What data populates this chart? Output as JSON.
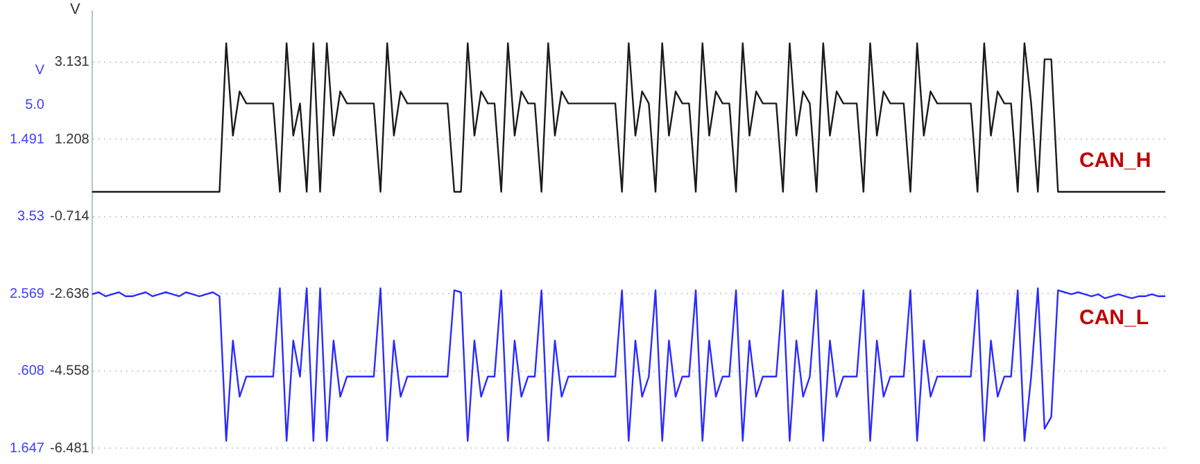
{
  "chart_data": {
    "type": "line",
    "ylabel": "V",
    "annotations": [
      "V",
      "5.0",
      "1.491",
      "3.53",
      "2.569",
      ".608",
      "1.647"
    ],
    "categories": [
      null,
      null,
      null,
      null,
      null,
      null,
      null,
      null,
      null,
      null,
      null,
      null,
      null,
      null,
      null,
      null,
      null,
      null,
      null,
      null,
      null,
      null,
      null,
      null,
      null,
      null,
      null,
      null,
      null,
      null,
      null,
      null,
      null,
      null,
      null,
      null,
      null,
      null,
      null,
      null,
      null,
      null,
      null,
      null,
      null,
      null,
      null,
      null,
      null,
      null,
      null,
      null,
      null,
      null,
      null,
      null,
      null,
      null,
      null,
      null,
      null,
      null,
      null,
      null,
      null,
      null,
      null,
      null,
      null,
      null,
      null,
      null,
      null,
      null,
      null,
      null,
      null,
      null,
      null,
      null,
      null,
      null,
      null,
      null,
      null,
      null,
      null,
      null,
      null,
      null,
      null,
      null,
      null,
      null,
      null,
      null,
      null,
      null,
      null,
      null,
      null,
      null,
      null,
      null,
      null,
      null,
      null,
      null,
      null,
      null,
      null,
      null,
      null,
      null,
      null,
      null,
      null,
      null,
      null,
      null,
      null,
      null,
      null,
      null,
      null,
      null,
      null,
      null,
      null,
      null,
      null,
      null,
      null,
      null,
      null,
      null,
      null,
      null,
      null,
      null,
      null,
      null,
      null,
      null,
      null,
      null,
      null,
      null,
      null,
      null,
      null,
      null,
      null,
      null,
      null,
      null,
      null,
      null,
      null,
      null,
      null
    ],
    "series": [
      {
        "name": "CAN_H",
        "color": "#1a1a1a",
        "values": [
          -0.1,
          -0.1,
          -0.1,
          -0.1,
          -0.1,
          -0.1,
          -0.1,
          -0.1,
          -0.1,
          -0.1,
          -0.1,
          -0.1,
          -0.1,
          -0.1,
          -0.1,
          -0.1,
          -0.1,
          -0.1,
          -0.1,
          -0.1,
          3.6,
          1.3,
          2.4,
          2.1,
          2.1,
          2.1,
          2.1,
          2.1,
          -0.1,
          3.6,
          1.3,
          2.1,
          -0.1,
          3.6,
          -0.1,
          3.6,
          1.3,
          2.4,
          2.1,
          2.1,
          2.1,
          2.1,
          2.1,
          -0.1,
          3.6,
          1.3,
          2.4,
          2.1,
          2.1,
          2.1,
          2.1,
          2.1,
          2.1,
          2.1,
          -0.1,
          -0.1,
          3.6,
          1.3,
          2.4,
          2.1,
          2.1,
          -0.1,
          3.6,
          1.3,
          2.4,
          2.1,
          2.1,
          -0.1,
          3.6,
          1.3,
          2.4,
          2.1,
          2.1,
          2.1,
          2.1,
          2.1,
          2.1,
          2.1,
          2.1,
          -0.1,
          3.6,
          1.3,
          2.4,
          2.1,
          -0.1,
          3.6,
          1.3,
          2.4,
          2.1,
          2.1,
          -0.1,
          3.6,
          1.3,
          2.4,
          2.1,
          2.1,
          -0.1,
          3.6,
          1.3,
          2.4,
          2.1,
          2.1,
          2.1,
          -0.1,
          3.6,
          1.3,
          2.4,
          2.1,
          -0.1,
          3.6,
          1.3,
          2.4,
          2.1,
          2.1,
          2.1,
          -0.1,
          3.6,
          1.3,
          2.4,
          2.1,
          2.1,
          2.1,
          -0.1,
          3.6,
          1.3,
          2.4,
          2.1,
          2.1,
          2.1,
          2.1,
          2.1,
          2.1,
          -0.1,
          3.6,
          1.3,
          2.4,
          2.1,
          2.1,
          -0.1,
          3.6,
          2.1,
          -0.1,
          3.2,
          3.2,
          -0.1,
          -0.1,
          -0.1,
          -0.1,
          -0.1,
          -0.1,
          -0.1,
          -0.1,
          -0.1,
          -0.1,
          -0.1,
          -0.1,
          -0.1,
          -0.1,
          -0.1,
          -0.1,
          -0.1
        ]
      },
      {
        "name": "CAN_L",
        "color": "#2b2bff",
        "values": [
          -2.65,
          -2.6,
          -2.7,
          -2.65,
          -2.6,
          -2.7,
          -2.7,
          -2.65,
          -2.6,
          -2.7,
          -2.65,
          -2.6,
          -2.65,
          -2.7,
          -2.6,
          -2.65,
          -2.7,
          -2.65,
          -2.6,
          -2.7,
          -6.3,
          -3.8,
          -5.2,
          -4.7,
          -4.7,
          -4.7,
          -4.7,
          -4.7,
          -2.5,
          -6.3,
          -3.8,
          -4.7,
          -2.5,
          -6.3,
          -2.5,
          -6.3,
          -3.8,
          -5.2,
          -4.7,
          -4.7,
          -4.7,
          -4.7,
          -4.7,
          -2.5,
          -6.3,
          -3.8,
          -5.2,
          -4.7,
          -4.7,
          -4.7,
          -4.7,
          -4.7,
          -4.7,
          -4.7,
          -2.55,
          -2.6,
          -6.3,
          -3.8,
          -5.2,
          -4.7,
          -4.7,
          -2.55,
          -6.3,
          -3.8,
          -5.2,
          -4.7,
          -4.7,
          -2.55,
          -6.3,
          -3.8,
          -5.2,
          -4.7,
          -4.7,
          -4.7,
          -4.7,
          -4.7,
          -4.7,
          -4.7,
          -4.7,
          -2.55,
          -6.3,
          -3.8,
          -5.2,
          -4.7,
          -2.55,
          -6.3,
          -3.8,
          -5.2,
          -4.7,
          -4.7,
          -2.55,
          -6.3,
          -3.8,
          -5.2,
          -4.7,
          -4.7,
          -2.55,
          -6.3,
          -3.8,
          -5.2,
          -4.7,
          -4.7,
          -4.7,
          -2.55,
          -6.3,
          -3.8,
          -5.2,
          -4.7,
          -2.55,
          -6.3,
          -3.8,
          -5.2,
          -4.7,
          -4.7,
          -4.7,
          -2.55,
          -6.3,
          -3.8,
          -5.2,
          -4.7,
          -4.7,
          -4.7,
          -2.55,
          -6.3,
          -3.8,
          -5.2,
          -4.7,
          -4.7,
          -4.7,
          -4.7,
          -4.7,
          -4.7,
          -2.55,
          -6.3,
          -3.8,
          -5.2,
          -4.7,
          -4.7,
          -2.55,
          -6.3,
          -4.7,
          -2.5,
          -6.0,
          -5.7,
          -2.55,
          -2.6,
          -2.65,
          -2.6,
          -2.65,
          -2.7,
          -2.65,
          -2.75,
          -2.7,
          -2.65,
          -2.7,
          -2.75,
          -2.7,
          -2.7,
          -2.65,
          -2.7,
          -2.7
        ]
      }
    ],
    "ylim": [
      -6.6,
      4.4
    ],
    "yticks": [
      3.131,
      1.208,
      -0.714,
      -2.636,
      -4.558,
      -6.481
    ],
    "grid": "y",
    "legend": false,
    "marker": "none",
    "line_style": "solid"
  }
}
